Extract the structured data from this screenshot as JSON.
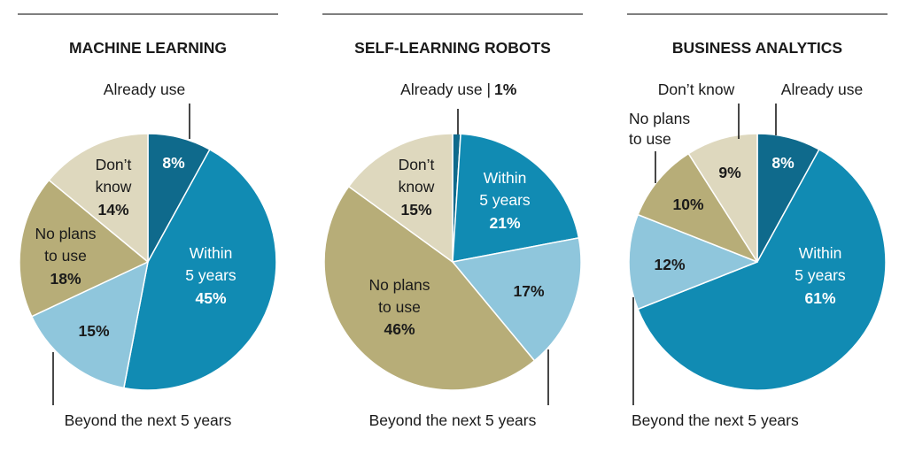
{
  "colors": {
    "already": "#0f6a8c",
    "within": "#118bb3",
    "beyond": "#8fc6dc",
    "noplans": "#b7ad78",
    "dontknow": "#ded8be",
    "text_dark": "#1a1a1a",
    "text_light": "#ffffff"
  },
  "chart_data": [
    {
      "type": "pie",
      "title": "MACHINE LEARNING",
      "slices": [
        {
          "key": "already",
          "label": "Already use",
          "value": 8
        },
        {
          "key": "within",
          "label": "Within 5 years",
          "value": 45
        },
        {
          "key": "beyond",
          "label": "Beyond the next 5 years",
          "value": 15
        },
        {
          "key": "noplans",
          "label": "No plans to use",
          "value": 18
        },
        {
          "key": "dontknow",
          "label": "Don’t know",
          "value": 14
        }
      ],
      "labels": {
        "already_ext": "Already use",
        "already_pct": "8%",
        "within_l1": "Within",
        "within_l2": "5 years",
        "within_pct": "45%",
        "beyond_pct": "15%",
        "beyond_ext": "Beyond the next 5 years",
        "noplans_l1": "No plans",
        "noplans_l2": "to use",
        "noplans_pct": "18%",
        "dontknow_l1": "Don’t",
        "dontknow_l2": "know",
        "dontknow_pct": "14%"
      }
    },
    {
      "type": "pie",
      "title": "SELF-LEARNING ROBOTS",
      "slices": [
        {
          "key": "already",
          "label": "Already use",
          "value": 1
        },
        {
          "key": "within",
          "label": "Within 5 years",
          "value": 21
        },
        {
          "key": "beyond",
          "label": "Beyond the next 5 years",
          "value": 17
        },
        {
          "key": "noplans",
          "label": "No plans to use",
          "value": 46
        },
        {
          "key": "dontknow",
          "label": "Don’t know",
          "value": 15
        }
      ],
      "labels": {
        "already_ext": "Already use |",
        "already_pct": "1%",
        "within_l1": "Within",
        "within_l2": "5 years",
        "within_pct": "21%",
        "beyond_pct": "17%",
        "beyond_ext": "Beyond the next 5 years",
        "noplans_l1": "No plans",
        "noplans_l2": "to use",
        "noplans_pct": "46%",
        "dontknow_l1": "Don’t",
        "dontknow_l2": "know",
        "dontknow_pct": "15%"
      }
    },
    {
      "type": "pie",
      "title": "BUSINESS ANALYTICS",
      "slices": [
        {
          "key": "already",
          "label": "Already use",
          "value": 8
        },
        {
          "key": "within",
          "label": "Within 5 years",
          "value": 61
        },
        {
          "key": "beyond",
          "label": "Beyond the next 5 years",
          "value": 12
        },
        {
          "key": "noplans",
          "label": "No plans to use",
          "value": 10
        },
        {
          "key": "dontknow",
          "label": "Don’t know",
          "value": 9
        }
      ],
      "labels": {
        "already_ext": "Already use",
        "already_pct": "8%",
        "within_l1": "Within",
        "within_l2": "5 years",
        "within_pct": "61%",
        "beyond_pct": "12%",
        "beyond_ext": "Beyond the next 5 years",
        "noplans_l1": "No plans",
        "noplans_l2": "to use",
        "noplans_pct": "10%",
        "dontknow_ext": "Don’t know",
        "dontknow_pct": "9%"
      }
    }
  ]
}
